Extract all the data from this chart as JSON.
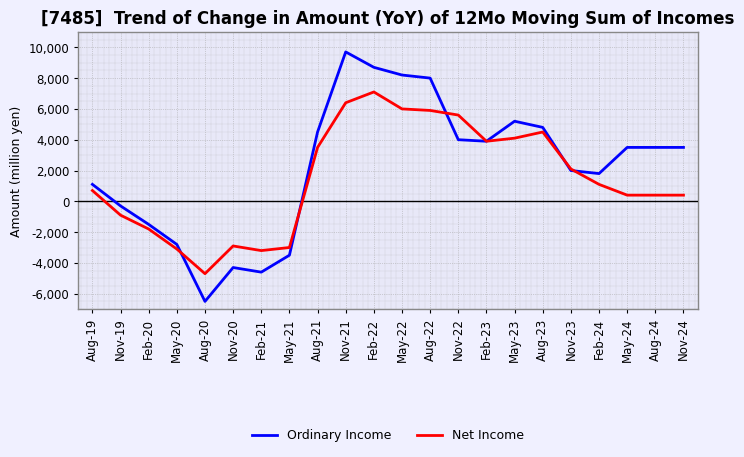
{
  "title": "[7485]  Trend of Change in Amount (YoY) of 12Mo Moving Sum of Incomes",
  "ylabel": "Amount (million yen)",
  "ylim": [
    -7000,
    11000
  ],
  "yticks": [
    -6000,
    -4000,
    -2000,
    0,
    2000,
    4000,
    6000,
    8000,
    10000
  ],
  "x_labels": [
    "Aug-19",
    "Nov-19",
    "Feb-20",
    "May-20",
    "Aug-20",
    "Nov-20",
    "Feb-21",
    "May-21",
    "Aug-21",
    "Nov-21",
    "Feb-22",
    "May-22",
    "Aug-22",
    "Nov-22",
    "Feb-23",
    "May-23",
    "Aug-23",
    "Nov-23",
    "Feb-24",
    "May-24",
    "Aug-24",
    "Nov-24"
  ],
  "ordinary_income": [
    1100,
    -300,
    -1500,
    -2800,
    -6500,
    -4300,
    -4600,
    -3500,
    4500,
    9700,
    8700,
    8200,
    8000,
    4000,
    3900,
    5200,
    4800,
    2000,
    1800,
    3500,
    3500,
    3500
  ],
  "net_income": [
    700,
    -900,
    -1800,
    -3100,
    -4700,
    -2900,
    -3200,
    -3000,
    3500,
    6400,
    7100,
    6000,
    5900,
    5600,
    3900,
    4100,
    4500,
    2100,
    1100,
    400,
    400,
    400
  ],
  "ordinary_color": "#0000ff",
  "net_color": "#ff0000",
  "line_width": 2.0,
  "background_color": "#f0f0ff",
  "plot_bg_color": "#e8e8f8",
  "grid_color": "#aaaaaa",
  "title_fontsize": 12,
  "label_fontsize": 9,
  "tick_fontsize": 8.5
}
